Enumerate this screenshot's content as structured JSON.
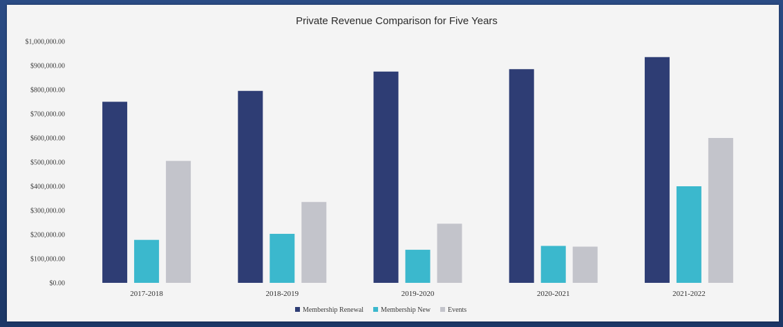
{
  "chart_data": {
    "type": "bar",
    "title": "Private Revenue Comparison for Five Years",
    "xlabel": "",
    "ylabel": "",
    "ylim": [
      0,
      1000000
    ],
    "y_ticks": [
      0,
      100000,
      200000,
      300000,
      400000,
      500000,
      600000,
      700000,
      800000,
      900000,
      1000000
    ],
    "y_tick_labels": [
      "$0.00",
      "$100,000.00",
      "$200,000.00",
      "$300,000.00",
      "$400,000.00",
      "$500,000.00",
      "$600,000.00",
      "$700,000.00",
      "$800,000.00",
      "$900,000.00",
      "$1,000,000.00"
    ],
    "categories": [
      "2017-2018",
      "2018-2019",
      "2019-2020",
      "2020-2021",
      "2021-2022"
    ],
    "series": [
      {
        "name": "Membership Renewal",
        "color": "#2e3d74",
        "values": [
          750000,
          795000,
          875000,
          885000,
          935000
        ]
      },
      {
        "name": "Membership New",
        "color": "#3bb8cd",
        "values": [
          178000,
          203000,
          137000,
          153000,
          400000
        ]
      },
      {
        "name": "Events",
        "color": "#c3c4cb",
        "values": [
          505000,
          335000,
          245000,
          150000,
          600000
        ]
      }
    ],
    "grid": false,
    "legend_position": "bottom"
  }
}
